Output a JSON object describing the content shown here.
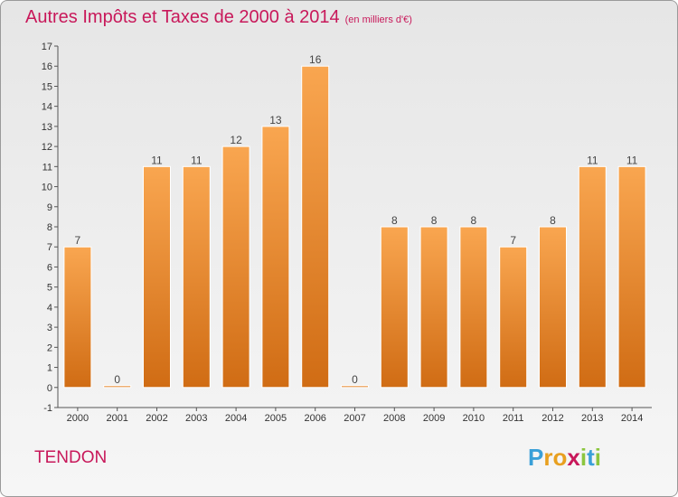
{
  "chart_data": {
    "type": "bar",
    "title": "Autres Impôts et Taxes de 2000 à 2014",
    "subtitle": "(en milliers d'€)",
    "categories": [
      "2000",
      "2001",
      "2002",
      "2003",
      "2004",
      "2005",
      "2006",
      "2007",
      "2008",
      "2009",
      "2010",
      "2011",
      "2012",
      "2013",
      "2014"
    ],
    "values": [
      7,
      0,
      11,
      11,
      12,
      13,
      16,
      0,
      8,
      8,
      8,
      7,
      8,
      11,
      11
    ],
    "xlabel": "",
    "ylabel": "",
    "ylim": [
      -1,
      17
    ],
    "yticks": [
      "-1",
      "0",
      "1",
      "2",
      "3",
      "4",
      "5",
      "6",
      "7",
      "8",
      "9",
      "10",
      "11",
      "12",
      "13",
      "14",
      "15",
      "16",
      "17"
    ],
    "grid": false,
    "bar_color": "#f08a2c",
    "title_color": "#c8185a"
  },
  "footer": {
    "commune": "TENDON",
    "logo_letters": [
      "P",
      "r",
      "o",
      "x",
      "i",
      "t",
      "i"
    ],
    "logo_colors": [
      "#3aa0d8",
      "#e8a020",
      "#e8a020",
      "#c8185a",
      "#8cc63f",
      "#3aa0d8",
      "#8cc63f"
    ]
  }
}
